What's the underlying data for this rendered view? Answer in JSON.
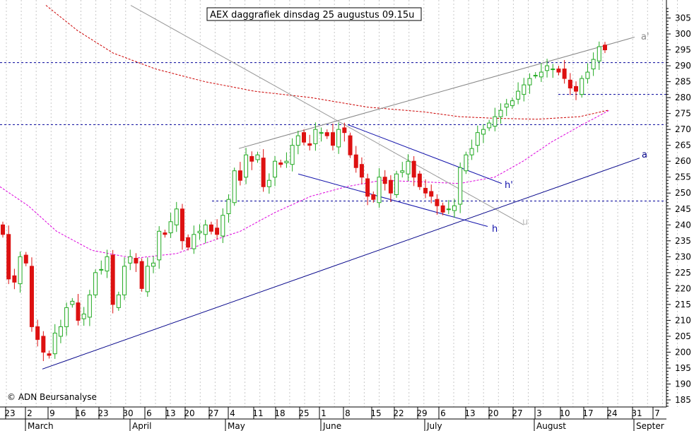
{
  "chart_data": {
    "type": "candlestick",
    "title": "AEX daggrafiek dinsdag 25 augustus 09.15u",
    "credit": "© ADN Beursanalyse",
    "ylim": [
      182,
      309
    ],
    "y_ticks": [
      185,
      190,
      195,
      200,
      205,
      210,
      215,
      220,
      225,
      230,
      235,
      240,
      245,
      250,
      255,
      260,
      265,
      270,
      275,
      280,
      285,
      290,
      295,
      300,
      305
    ],
    "x_tick_labels": [
      "23",
      "2",
      "9",
      "16",
      "23",
      "30",
      "6",
      "13",
      "20",
      "27",
      "4",
      "11",
      "18",
      "25",
      "1",
      "8",
      "15",
      "22",
      "29",
      "6",
      "13",
      "20",
      "27",
      "3",
      "10",
      "17",
      "24",
      "31",
      "7"
    ],
    "months": [
      "March",
      "April",
      "May",
      "June",
      "July",
      "August",
      "Septer"
    ],
    "horizontal_levels": [
      291,
      281,
      271.5,
      247.5
    ],
    "trend_annotations": [
      "a'",
      "a",
      "h'",
      "h",
      "u"
    ],
    "colors": {
      "up": "#22aa22",
      "down": "#dd1111",
      "ma_long": "#cc0000",
      "ma_short": "#dd00dd",
      "trend": "#000088",
      "channel": "#1010aa",
      "grey_line": "#999999",
      "level": "#000099"
    },
    "candles_close": [
      237,
      223,
      222,
      230,
      228,
      208,
      204,
      200,
      199,
      206,
      208,
      214,
      216,
      210,
      212,
      218,
      225,
      226,
      230,
      215,
      218,
      227,
      230,
      228,
      220,
      227,
      228,
      238,
      237,
      241,
      245,
      235,
      233,
      237,
      238,
      240,
      238,
      237,
      243,
      248,
      257,
      254,
      262,
      260,
      262,
      252,
      254,
      260,
      259,
      260,
      265,
      268,
      266,
      265,
      270,
      269,
      268,
      265,
      270,
      269,
      262,
      258,
      255,
      249,
      248,
      255,
      253,
      250,
      256,
      257,
      260,
      255,
      252,
      250,
      249,
      246,
      244,
      245,
      246,
      258,
      262,
      264,
      269,
      270,
      272,
      274,
      276,
      278,
      279,
      282,
      284,
      286,
      287,
      288,
      290,
      289,
      288,
      286,
      283,
      282,
      286,
      288,
      292,
      296,
      295
    ]
  }
}
